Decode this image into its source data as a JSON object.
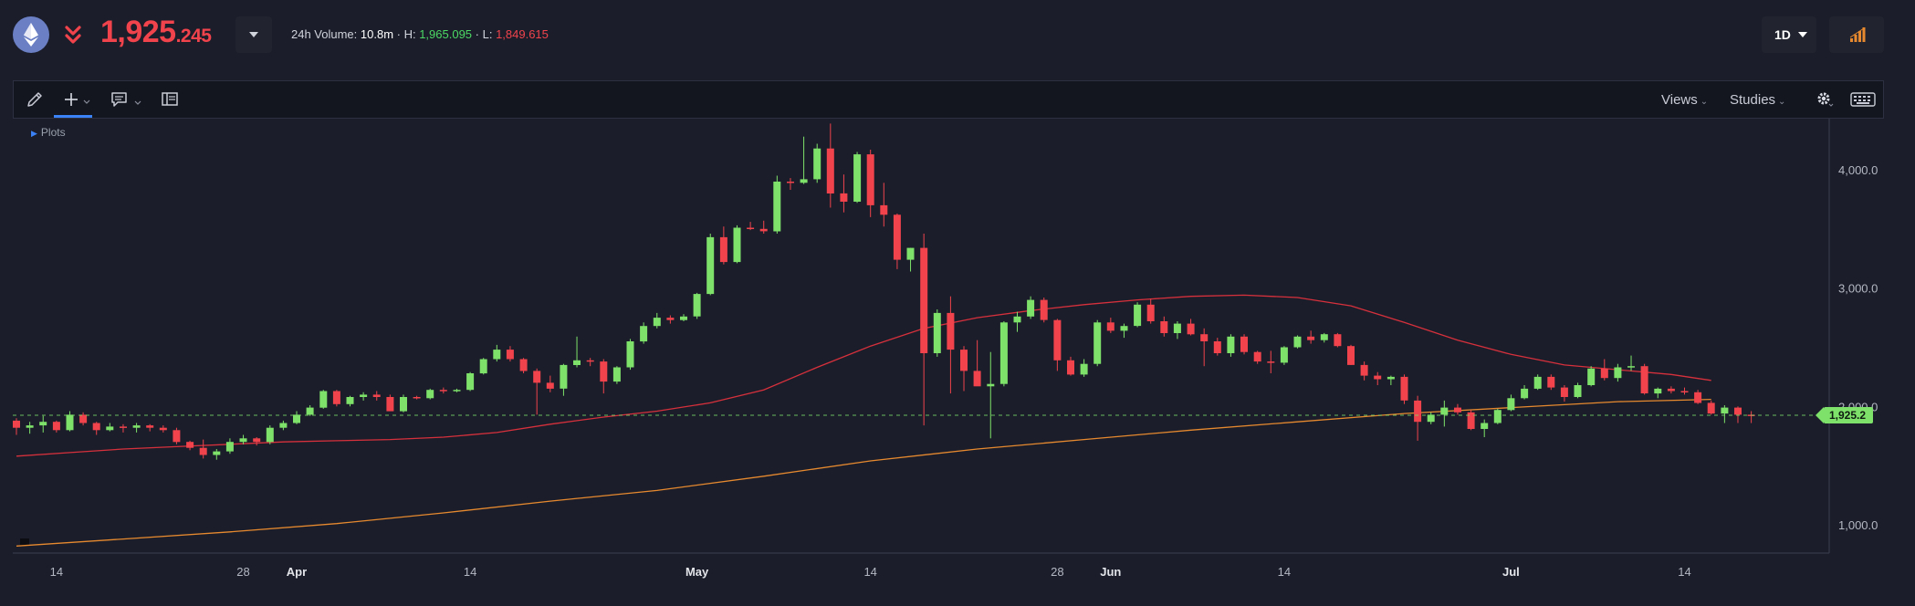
{
  "header": {
    "price_main": "1,925",
    "price_decimal": ".245",
    "volume_label": "24h Volume: ",
    "volume_value": "10.8m",
    "high_label": " · H: ",
    "high_value": "1,965.095",
    "low_label": " · L: ",
    "low_value": "1,849.615",
    "interval": "1D"
  },
  "icons": {
    "asset": "ethereum-icon",
    "trend": "double-chevron-down-icon",
    "signal": "signal-bars-icon"
  },
  "toolbar": {
    "views_label": "Views",
    "studies_label": "Studies"
  },
  "chart": {
    "plots_label": "Plots",
    "current_price_tag": "1,925.2"
  },
  "colors": {
    "up": "#7ee26a",
    "down": "#f0434c",
    "ma_short": "#d6303c",
    "ma_long": "#e6892f",
    "background": "#1b1e2a"
  },
  "chart_data": {
    "type": "candlestick",
    "title": "",
    "xlabel": "",
    "ylabel": "",
    "ylim": [
      800,
      4300
    ],
    "y_ticks": [
      1000,
      2000,
      3000,
      4000
    ],
    "y_tick_labels": [
      "1,000.0",
      "2,000.0",
      "3,000.0",
      "4,000.0"
    ],
    "x_tick_labels": [
      {
        "label": "14",
        "index": 3
      },
      {
        "label": "28",
        "index": 17
      },
      {
        "label": "Apr",
        "index": 21,
        "month": true
      },
      {
        "label": "14",
        "index": 34
      },
      {
        "label": "May",
        "index": 51,
        "month": true
      },
      {
        "label": "14",
        "index": 64
      },
      {
        "label": "28",
        "index": 78
      },
      {
        "label": "Jun",
        "index": 82,
        "month": true
      },
      {
        "label": "14",
        "index": 95
      },
      {
        "label": "Jul",
        "index": 112,
        "month": true
      },
      {
        "label": "14",
        "index": 125
      }
    ],
    "current_price": 1925.2,
    "series": [
      {
        "name": "",
        "ohlc": [
          [
            1880,
            1900,
            1760,
            1820
          ],
          [
            1820,
            1870,
            1770,
            1840
          ],
          [
            1840,
            1920,
            1780,
            1870
          ],
          [
            1870,
            1880,
            1780,
            1800
          ],
          [
            1800,
            1960,
            1790,
            1930
          ],
          [
            1930,
            1950,
            1840,
            1860
          ],
          [
            1860,
            1870,
            1760,
            1800
          ],
          [
            1800,
            1860,
            1790,
            1830
          ],
          [
            1830,
            1850,
            1780,
            1820
          ],
          [
            1820,
            1860,
            1780,
            1840
          ],
          [
            1840,
            1850,
            1790,
            1820
          ],
          [
            1820,
            1840,
            1780,
            1800
          ],
          [
            1800,
            1820,
            1680,
            1700
          ],
          [
            1700,
            1710,
            1630,
            1650
          ],
          [
            1650,
            1720,
            1560,
            1590
          ],
          [
            1590,
            1640,
            1550,
            1620
          ],
          [
            1620,
            1730,
            1600,
            1700
          ],
          [
            1700,
            1760,
            1680,
            1730
          ],
          [
            1730,
            1740,
            1670,
            1700
          ],
          [
            1700,
            1840,
            1680,
            1820
          ],
          [
            1820,
            1880,
            1800,
            1860
          ],
          [
            1860,
            1960,
            1850,
            1930
          ],
          [
            1930,
            2010,
            1920,
            1990
          ],
          [
            1990,
            2140,
            1980,
            2130
          ],
          [
            2130,
            2140,
            2000,
            2020
          ],
          [
            2020,
            2090,
            2000,
            2080
          ],
          [
            2080,
            2120,
            2050,
            2100
          ],
          [
            2100,
            2130,
            2050,
            2080
          ],
          [
            2080,
            2100,
            1960,
            1960
          ],
          [
            1960,
            2100,
            1950,
            2080
          ],
          [
            2080,
            2090,
            2060,
            2070
          ],
          [
            2070,
            2150,
            2060,
            2140
          ],
          [
            2140,
            2160,
            2110,
            2130
          ],
          [
            2130,
            2150,
            2120,
            2140
          ],
          [
            2140,
            2290,
            2130,
            2280
          ],
          [
            2280,
            2410,
            2270,
            2400
          ],
          [
            2400,
            2520,
            2380,
            2480
          ],
          [
            2480,
            2510,
            2380,
            2400
          ],
          [
            2400,
            2410,
            2280,
            2300
          ],
          [
            2300,
            2320,
            1930,
            2200
          ],
          [
            2200,
            2260,
            2120,
            2150
          ],
          [
            2150,
            2360,
            2090,
            2350
          ],
          [
            2350,
            2590,
            2330,
            2390
          ],
          [
            2390,
            2410,
            2340,
            2380
          ],
          [
            2380,
            2400,
            2110,
            2210
          ],
          [
            2210,
            2340,
            2190,
            2330
          ],
          [
            2330,
            2570,
            2310,
            2550
          ],
          [
            2550,
            2710,
            2530,
            2680
          ],
          [
            2680,
            2790,
            2660,
            2750
          ],
          [
            2750,
            2770,
            2700,
            2730
          ],
          [
            2730,
            2780,
            2720,
            2760
          ],
          [
            2760,
            2960,
            2740,
            2950
          ],
          [
            2950,
            3460,
            2940,
            3430
          ],
          [
            3430,
            3520,
            3200,
            3220
          ],
          [
            3220,
            3530,
            3210,
            3510
          ],
          [
            3510,
            3560,
            3490,
            3500
          ],
          [
            3500,
            3570,
            3460,
            3480
          ],
          [
            3480,
            3950,
            3460,
            3900
          ],
          [
            3900,
            3930,
            3830,
            3890
          ],
          [
            3890,
            4280,
            3880,
            3920
          ],
          [
            3920,
            4220,
            3890,
            4180
          ],
          [
            4180,
            4390,
            3680,
            3800
          ],
          [
            3800,
            3960,
            3640,
            3730
          ],
          [
            3730,
            4150,
            3720,
            4130
          ],
          [
            4130,
            4170,
            3600,
            3700
          ],
          [
            3700,
            3890,
            3520,
            3620
          ],
          [
            3620,
            3630,
            3160,
            3240
          ],
          [
            3240,
            3340,
            3140,
            3340
          ],
          [
            3340,
            3460,
            1840,
            2450
          ],
          [
            2450,
            2820,
            2420,
            2790
          ],
          [
            2790,
            2930,
            2110,
            2480
          ],
          [
            2480,
            2510,
            2130,
            2300
          ],
          [
            2300,
            2560,
            2200,
            2170
          ],
          [
            2170,
            2460,
            1730,
            2190
          ],
          [
            2190,
            2720,
            2170,
            2710
          ],
          [
            2710,
            2800,
            2630,
            2760
          ],
          [
            2760,
            2930,
            2740,
            2900
          ],
          [
            2900,
            2920,
            2710,
            2730
          ],
          [
            2730,
            2740,
            2300,
            2390
          ],
          [
            2390,
            2420,
            2260,
            2270
          ],
          [
            2270,
            2400,
            2250,
            2360
          ],
          [
            2360,
            2730,
            2340,
            2710
          ],
          [
            2710,
            2750,
            2620,
            2640
          ],
          [
            2640,
            2700,
            2580,
            2680
          ],
          [
            2680,
            2880,
            2670,
            2860
          ],
          [
            2860,
            2910,
            2700,
            2720
          ],
          [
            2720,
            2760,
            2590,
            2620
          ],
          [
            2620,
            2720,
            2570,
            2700
          ],
          [
            2700,
            2740,
            2600,
            2610
          ],
          [
            2610,
            2660,
            2340,
            2550
          ],
          [
            2550,
            2580,
            2430,
            2450
          ],
          [
            2450,
            2610,
            2420,
            2590
          ],
          [
            2590,
            2610,
            2440,
            2460
          ],
          [
            2460,
            2470,
            2360,
            2380
          ],
          [
            2380,
            2470,
            2280,
            2370
          ],
          [
            2370,
            2510,
            2350,
            2500
          ],
          [
            2500,
            2600,
            2490,
            2590
          ],
          [
            2590,
            2640,
            2530,
            2560
          ],
          [
            2560,
            2620,
            2540,
            2610
          ],
          [
            2610,
            2620,
            2500,
            2510
          ],
          [
            2510,
            2520,
            2350,
            2350
          ],
          [
            2350,
            2380,
            2220,
            2260
          ],
          [
            2260,
            2290,
            2180,
            2230
          ],
          [
            2230,
            2260,
            2180,
            2250
          ],
          [
            2250,
            2270,
            2020,
            2050
          ],
          [
            2050,
            2090,
            1710,
            1870
          ],
          [
            1870,
            1950,
            1850,
            1930
          ],
          [
            1930,
            2050,
            1830,
            1990
          ],
          [
            1990,
            2020,
            1930,
            1950
          ],
          [
            1950,
            1970,
            1800,
            1810
          ],
          [
            1810,
            1890,
            1740,
            1860
          ],
          [
            1860,
            1980,
            1850,
            1970
          ],
          [
            1970,
            2100,
            1960,
            2070
          ],
          [
            2070,
            2180,
            2060,
            2150
          ],
          [
            2150,
            2270,
            2140,
            2250
          ],
          [
            2250,
            2270,
            2140,
            2160
          ],
          [
            2160,
            2180,
            2040,
            2080
          ],
          [
            2080,
            2200,
            2070,
            2180
          ],
          [
            2180,
            2340,
            2170,
            2320
          ],
          [
            2320,
            2400,
            2220,
            2240
          ],
          [
            2240,
            2360,
            2210,
            2330
          ],
          [
            2330,
            2430,
            2300,
            2340
          ],
          [
            2340,
            2360,
            2100,
            2110
          ],
          [
            2110,
            2160,
            2070,
            2150
          ],
          [
            2150,
            2170,
            2110,
            2130
          ],
          [
            2130,
            2160,
            2100,
            2120
          ],
          [
            2120,
            2140,
            2020,
            2030
          ],
          [
            2030,
            2050,
            1930,
            1940
          ],
          [
            1940,
            2010,
            1860,
            1990
          ],
          [
            1990,
            2000,
            1860,
            1930
          ],
          [
            1930,
            1960,
            1860,
            1920
          ]
        ]
      },
      {
        "name": "",
        "type": "line",
        "values": [
          [
            0,
            1580
          ],
          [
            4,
            1610
          ],
          [
            8,
            1640
          ],
          [
            12,
            1660
          ],
          [
            16,
            1680
          ],
          [
            20,
            1700
          ],
          [
            24,
            1710
          ],
          [
            28,
            1720
          ],
          [
            32,
            1740
          ],
          [
            36,
            1780
          ],
          [
            40,
            1850
          ],
          [
            44,
            1910
          ],
          [
            48,
            1960
          ],
          [
            52,
            2030
          ],
          [
            56,
            2140
          ],
          [
            60,
            2330
          ],
          [
            64,
            2510
          ],
          [
            68,
            2660
          ],
          [
            72,
            2750
          ],
          [
            76,
            2810
          ],
          [
            80,
            2860
          ],
          [
            84,
            2900
          ],
          [
            88,
            2930
          ],
          [
            92,
            2940
          ],
          [
            96,
            2920
          ],
          [
            100,
            2850
          ],
          [
            104,
            2710
          ],
          [
            108,
            2560
          ],
          [
            112,
            2440
          ],
          [
            116,
            2350
          ],
          [
            120,
            2310
          ],
          [
            124,
            2270
          ],
          [
            127,
            2220
          ]
        ]
      },
      {
        "name": "",
        "type": "line",
        "values": [
          [
            0,
            820
          ],
          [
            8,
            880
          ],
          [
            16,
            940
          ],
          [
            24,
            1010
          ],
          [
            32,
            1100
          ],
          [
            40,
            1200
          ],
          [
            48,
            1290
          ],
          [
            56,
            1410
          ],
          [
            64,
            1540
          ],
          [
            72,
            1640
          ],
          [
            80,
            1720
          ],
          [
            88,
            1800
          ],
          [
            96,
            1870
          ],
          [
            104,
            1940
          ],
          [
            112,
            1990
          ],
          [
            120,
            2040
          ],
          [
            127,
            2060
          ]
        ]
      }
    ]
  }
}
